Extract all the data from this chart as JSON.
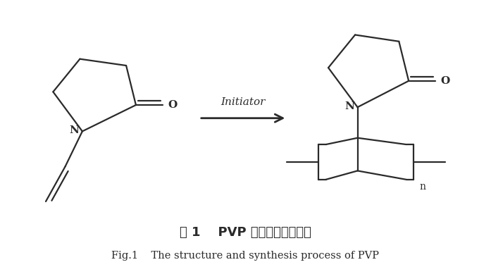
{
  "bg_color": "#ffffff",
  "title_chinese": "图 1    PVP 的结构及合成过程",
  "title_english": "Fig.1    The structure and synthesis process of PVP",
  "initiator_text": "Initiator",
  "line_color": "#2a2a2a",
  "text_color": "#2a2a2a",
  "label_color": "#2a2a2a",
  "initiator_color": "#2a2a2a",
  "fig_width": 6.97,
  "fig_height": 3.79,
  "dpi": 100
}
